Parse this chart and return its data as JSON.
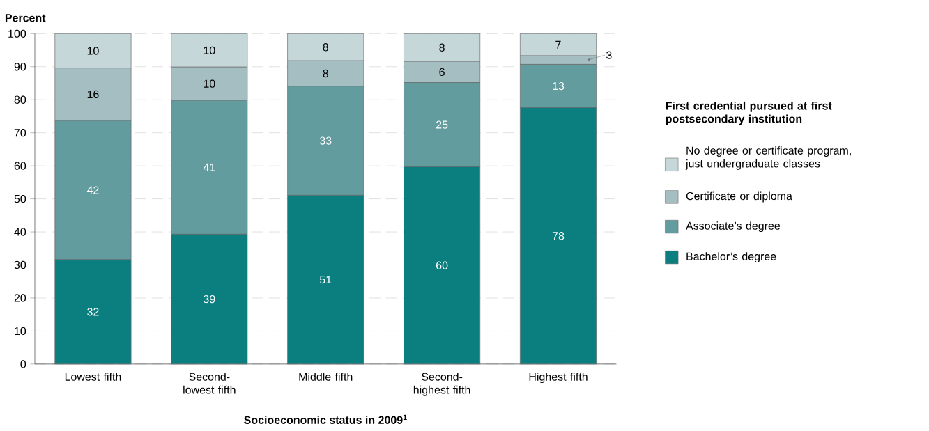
{
  "chart_data": {
    "type": "bar",
    "stacked": true,
    "ylabel": "Percent",
    "xlabel": "Socioeconomic status in 2009$^{1}$",
    "legend_title": "First credential pursued at first postsecondary institution",
    "legend": "right",
    "grid": "y",
    "categories": [
      "Lowest fifth",
      "Second-lowest fifth",
      "Middle fifth",
      "Second-highest fifth",
      "Highest fifth"
    ],
    "ylim": [
      0,
      100
    ],
    "yticks": [
      0,
      10,
      20,
      30,
      40,
      50,
      60,
      70,
      80,
      90,
      100
    ],
    "series": [
      {
        "name": "Bachelor’s degree",
        "color": "#0b7f80",
        "values": [
          31.6,
          39.3,
          51.1,
          59.7,
          77.6
        ],
        "value_labels": [
          "32",
          "39",
          "51",
          "60",
          "78"
        ]
      },
      {
        "name": "Associate’s degree",
        "color": "#639c9e",
        "values": [
          42.1,
          40.5,
          33.0,
          25.5,
          13.1
        ],
        "value_labels": [
          "42",
          "41",
          "33",
          "25",
          "13"
        ]
      },
      {
        "name": "Certificate or diploma",
        "color": "#a5bec1",
        "values": [
          15.9,
          10.1,
          7.7,
          6.4,
          2.6
        ],
        "value_labels": [
          "16",
          "10",
          "8",
          "6",
          "3"
        ]
      },
      {
        "name": "No degree or certificate program, just undergraduate classes",
        "color": "#c6d7d9",
        "values": [
          10.4,
          10.1,
          8.2,
          8.4,
          6.7
        ],
        "value_labels": [
          "10",
          "10",
          "8",
          "8",
          "7"
        ]
      }
    ]
  }
}
